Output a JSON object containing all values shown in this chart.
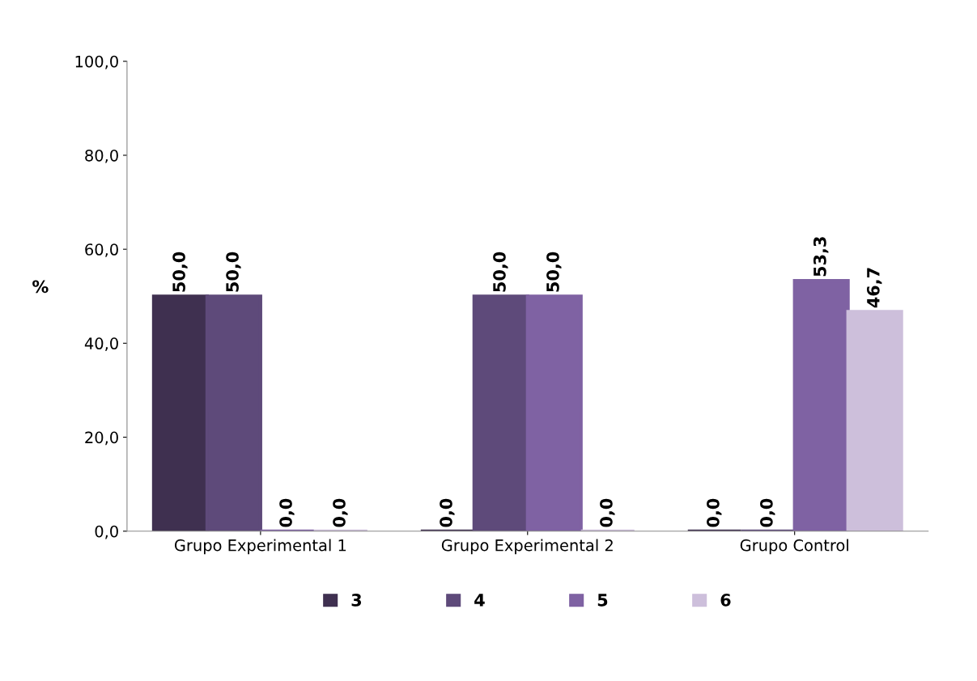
{
  "chart_data": {
    "type": "bar",
    "ylabel": "%",
    "categories": [
      "Grupo Experimental 1",
      "Grupo Experimental 2",
      "Grupo Control"
    ],
    "series": [
      {
        "name": "3",
        "color": "#3f3050",
        "values": [
          50.0,
          0.0,
          0.0
        ],
        "value_labels": [
          "50,0",
          "0,0",
          "0,0"
        ]
      },
      {
        "name": "4",
        "color": "#5e4a7a",
        "values": [
          50.0,
          50.0,
          0.0
        ],
        "value_labels": [
          "50,0",
          "50,0",
          "0,0"
        ]
      },
      {
        "name": "5",
        "color": "#7f62a3",
        "values": [
          0.0,
          50.0,
          53.3
        ],
        "value_labels": [
          "0,0",
          "50,0",
          "53,3"
        ]
      },
      {
        "name": "6",
        "color": "#cdbfdb",
        "values": [
          0.0,
          0.0,
          46.7
        ],
        "value_labels": [
          "0,0",
          "0,0",
          "46,7"
        ]
      }
    ],
    "ylim": [
      0,
      100
    ],
    "yticks": [
      {
        "value": 0,
        "label": "0,0"
      },
      {
        "value": 20,
        "label": "20,0"
      },
      {
        "value": 40,
        "label": "40,0"
      },
      {
        "value": 60,
        "label": "60,0"
      },
      {
        "value": 80,
        "label": "80,0"
      },
      {
        "value": 100,
        "label": "100,0"
      }
    ],
    "grid": false,
    "legend": "bottom"
  }
}
